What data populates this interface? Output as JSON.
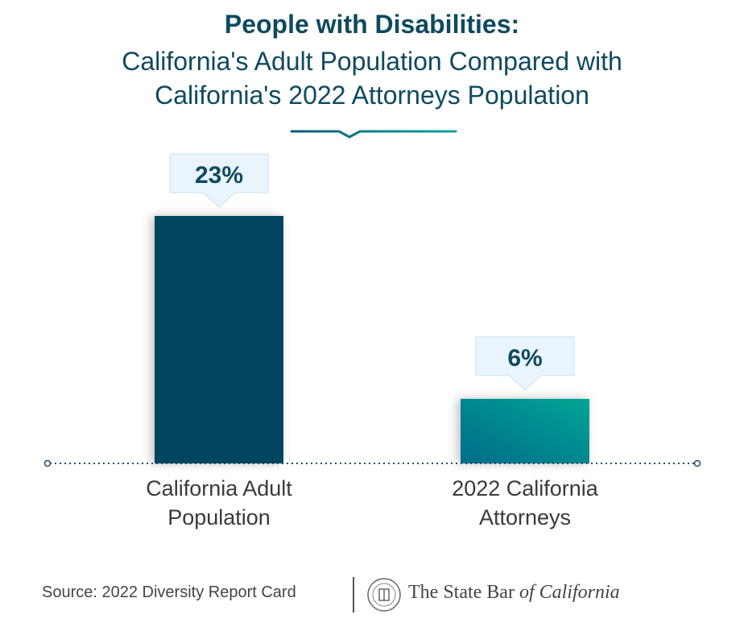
{
  "chart_data": {
    "type": "bar",
    "title": "People with Disabilities:",
    "subtitle": [
      "California's Adult Population Compared with",
      "California's 2022 Attorneys Population"
    ],
    "categories": [
      "California Adult Population",
      "2022 California Attorneys"
    ],
    "category_lines": [
      [
        "California Adult",
        "Population"
      ],
      [
        "2022 California",
        "Attorneys"
      ]
    ],
    "values": [
      23,
      6
    ],
    "data_labels": [
      "23%",
      "6%"
    ],
    "ylim": [
      0,
      25
    ],
    "grid": false,
    "colors": {
      "bar1": "#02455e",
      "bar2_start": "#036b8a",
      "bar2_end": "#00a596",
      "title": "#0e4a5f",
      "label_box": "#eaf4fc"
    }
  },
  "footer": {
    "source": "Source:  2022 Diversity Report Card",
    "logo_text_main": "The State Bar ",
    "logo_text_italic": "of California",
    "logo_icon": "state-bar-seal-icon"
  }
}
